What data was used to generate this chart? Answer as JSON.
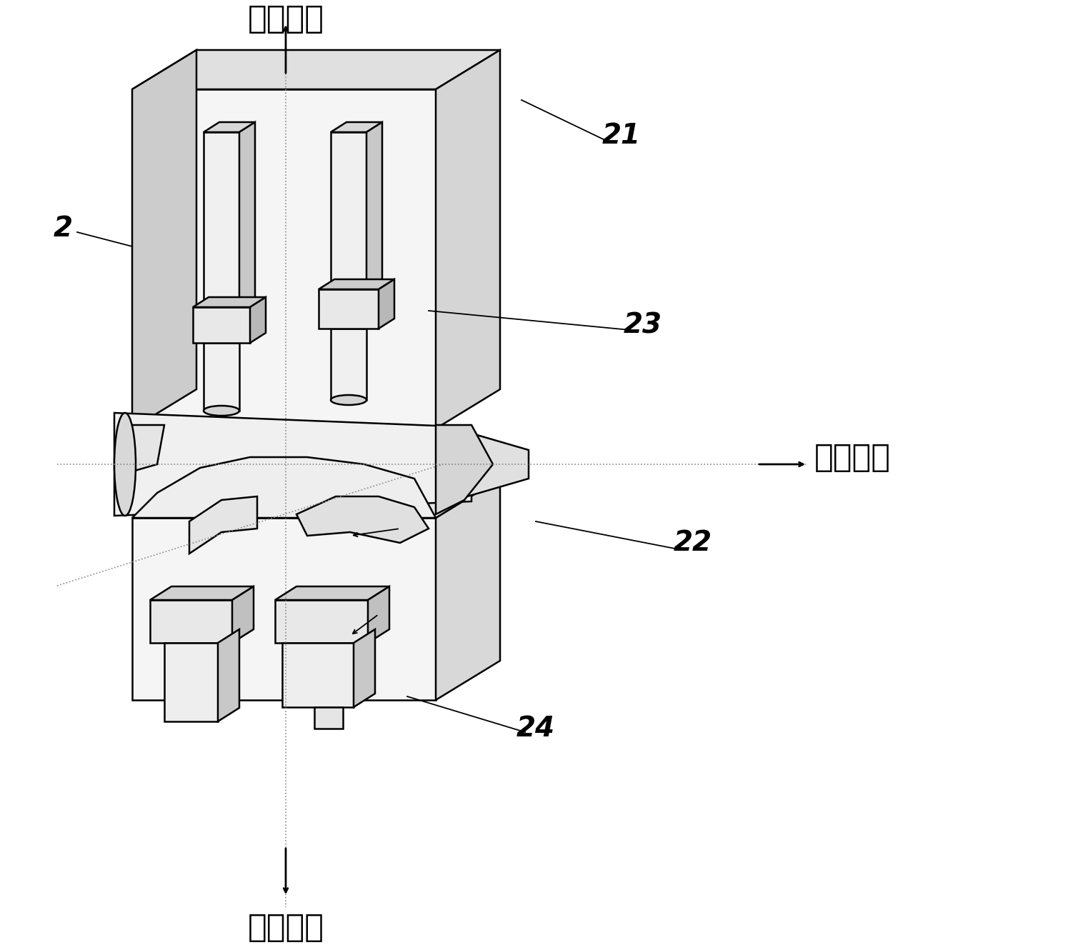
{
  "title": "",
  "background_color": "#ffffff",
  "line_color": "#000000",
  "fill_color_light": "#e8e8e8",
  "fill_color_mid": "#d0d0d0",
  "fill_color_dark": "#b0b0b0",
  "labels": {
    "top": "第二方向",
    "right": "第一方向",
    "bottom": "第三方向",
    "label_2": "2",
    "label_21": "21",
    "label_22": "22",
    "label_23": "23",
    "label_24": "24"
  },
  "figsize": [
    14.95,
    13.3
  ],
  "dpi": 100
}
